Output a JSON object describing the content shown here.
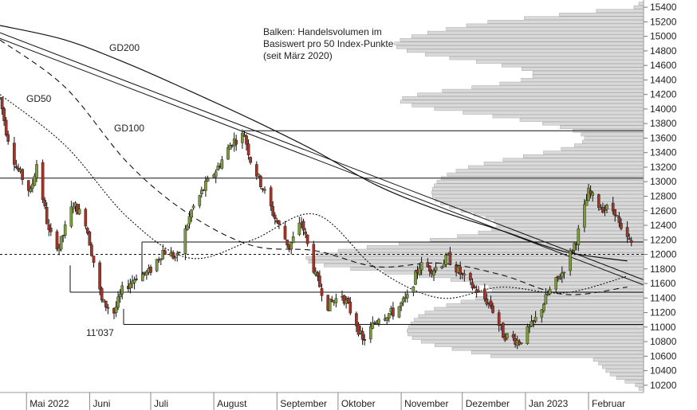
{
  "chart_data": {
    "type": "candlestick",
    "title": "",
    "xlabel": "",
    "ylabel": "",
    "ylim": [
      10100,
      15500
    ],
    "y_ticks": [
      10200,
      10400,
      10600,
      10800,
      11000,
      11200,
      11400,
      11600,
      11800,
      12000,
      12200,
      12400,
      12600,
      12800,
      13000,
      13200,
      13400,
      13600,
      13800,
      14000,
      14200,
      14400,
      14600,
      14800,
      15000,
      15200,
      15400
    ],
    "y_tick_labels": [
      "10200",
      "10400",
      "10600",
      "10800",
      "11000",
      "11200",
      "11400",
      "11600",
      "11800",
      "12000",
      "12200",
      "12400",
      "12600",
      "12800",
      "13000",
      "13200",
      "13400",
      "13600",
      "13800",
      "14000",
      "14200",
      "14400",
      "14600",
      "14800",
      "15000",
      "15200",
      "15400"
    ],
    "x_range": [
      "2022-04-18",
      "2023-02-28"
    ],
    "x_ticks": [
      {
        "label": "Mai 2022",
        "date": "2022-05-01"
      },
      {
        "label": "Juni",
        "date": "2022-06-01"
      },
      {
        "label": "Juli",
        "date": "2022-07-01"
      },
      {
        "label": "August",
        "date": "2022-08-01"
      },
      {
        "label": "September",
        "date": "2022-09-01"
      },
      {
        "label": "Oktober",
        "date": "2022-10-01"
      },
      {
        "label": "November",
        "date": "2022-11-01"
      },
      {
        "label": "Dezember",
        "date": "2022-12-01"
      },
      {
        "label": "Jan 2023",
        "date": "2023-01-01"
      },
      {
        "label": "Februar",
        "date": "2023-02-01"
      }
    ],
    "annotations": {
      "volume_note": [
        "Balken: Handelsvolumen im",
        "Basiswert pro 50 Index-Punkte",
        "(seit März 2020)"
      ],
      "ma_labels": [
        "GD200",
        "GD50",
        "GD100"
      ],
      "low_label": "11'037"
    },
    "horizontal_levels": [
      13700,
      13050,
      12170,
      11480,
      11037
    ],
    "dashed_level": 12000,
    "moving_averages": [
      {
        "name": "GD200",
        "x": [
          "2022-04-18",
          "2022-05-20",
          "2022-06-20",
          "2022-07-20",
          "2022-08-20",
          "2022-09-20",
          "2022-10-20",
          "2022-11-20",
          "2022-12-20",
          "2023-01-20",
          "2023-02-20"
        ],
        "values": [
          15150,
          14950,
          14620,
          14250,
          13850,
          13420,
          12950,
          12600,
          12330,
          12040,
          11910
        ]
      },
      {
        "name": "GD100",
        "x": [
          "2022-04-18",
          "2022-05-20",
          "2022-06-20",
          "2022-07-20",
          "2022-08-20",
          "2022-09-20",
          "2022-10-20",
          "2022-11-20",
          "2022-12-20",
          "2023-01-20",
          "2023-02-20"
        ],
        "values": [
          14950,
          14300,
          13250,
          12550,
          12120,
          12050,
          11830,
          11880,
          11720,
          11450,
          11550
        ]
      },
      {
        "name": "GD50",
        "x": [
          "2022-04-18",
          "2022-05-20",
          "2022-06-20",
          "2022-07-20",
          "2022-08-20",
          "2022-09-20",
          "2022-10-20",
          "2022-11-20",
          "2022-12-20",
          "2023-01-20",
          "2023-02-20"
        ],
        "values": [
          14200,
          13500,
          12500,
          11950,
          12200,
          12550,
          11800,
          11400,
          11550,
          11470,
          11700
        ]
      }
    ],
    "trendlines": [
      {
        "name": "downtrend-1",
        "x": [
          "2022-04-18",
          "2023-02-28"
        ],
        "values": [
          14970,
          11580
        ]
      },
      {
        "name": "downtrend-2",
        "x": [
          "2022-04-18",
          "2023-02-28"
        ],
        "values": [
          15050,
          11650
        ]
      }
    ],
    "ohlc_path": {
      "x": [
        "2022-04-18",
        "2022-04-21",
        "2022-04-26",
        "2022-05-03",
        "2022-05-06",
        "2022-05-12",
        "2022-05-17",
        "2022-05-24",
        "2022-05-30",
        "2022-06-07",
        "2022-06-13",
        "2022-06-17",
        "2022-06-24",
        "2022-06-30",
        "2022-07-07",
        "2022-07-14",
        "2022-07-21",
        "2022-07-28",
        "2022-08-03",
        "2022-08-10",
        "2022-08-16",
        "2022-08-19",
        "2022-08-26",
        "2022-08-31",
        "2022-09-07",
        "2022-09-13",
        "2022-09-20",
        "2022-09-26",
        "2022-10-03",
        "2022-10-10",
        "2022-10-13",
        "2022-10-21",
        "2022-10-28",
        "2022-11-04",
        "2022-11-10",
        "2022-11-17",
        "2022-11-24",
        "2022-12-01",
        "2022-12-08",
        "2022-12-15",
        "2022-12-21",
        "2022-12-29",
        "2023-01-05",
        "2023-01-12",
        "2023-01-19",
        "2023-01-26",
        "2023-02-01",
        "2023-02-07",
        "2023-02-14",
        "2023-02-17",
        "2023-02-22"
      ],
      "values": [
        14150,
        13700,
        13200,
        12850,
        13250,
        12300,
        12100,
        12700,
        12450,
        11350,
        11200,
        11500,
        11700,
        11750,
        12050,
        11950,
        12600,
        12950,
        13200,
        13550,
        13650,
        13300,
        12850,
        12500,
        12100,
        12450,
        11700,
        11300,
        11450,
        11050,
        10800,
        11150,
        11200,
        11400,
        11850,
        11800,
        11950,
        11700,
        11500,
        11300,
        10900,
        10800,
        11050,
        11450,
        11750,
        12200,
        12850,
        12650,
        12600,
        12300,
        12150
      ]
    },
    "volume_profile_note": "horizontal bars: trading volume per 50 index points"
  }
}
